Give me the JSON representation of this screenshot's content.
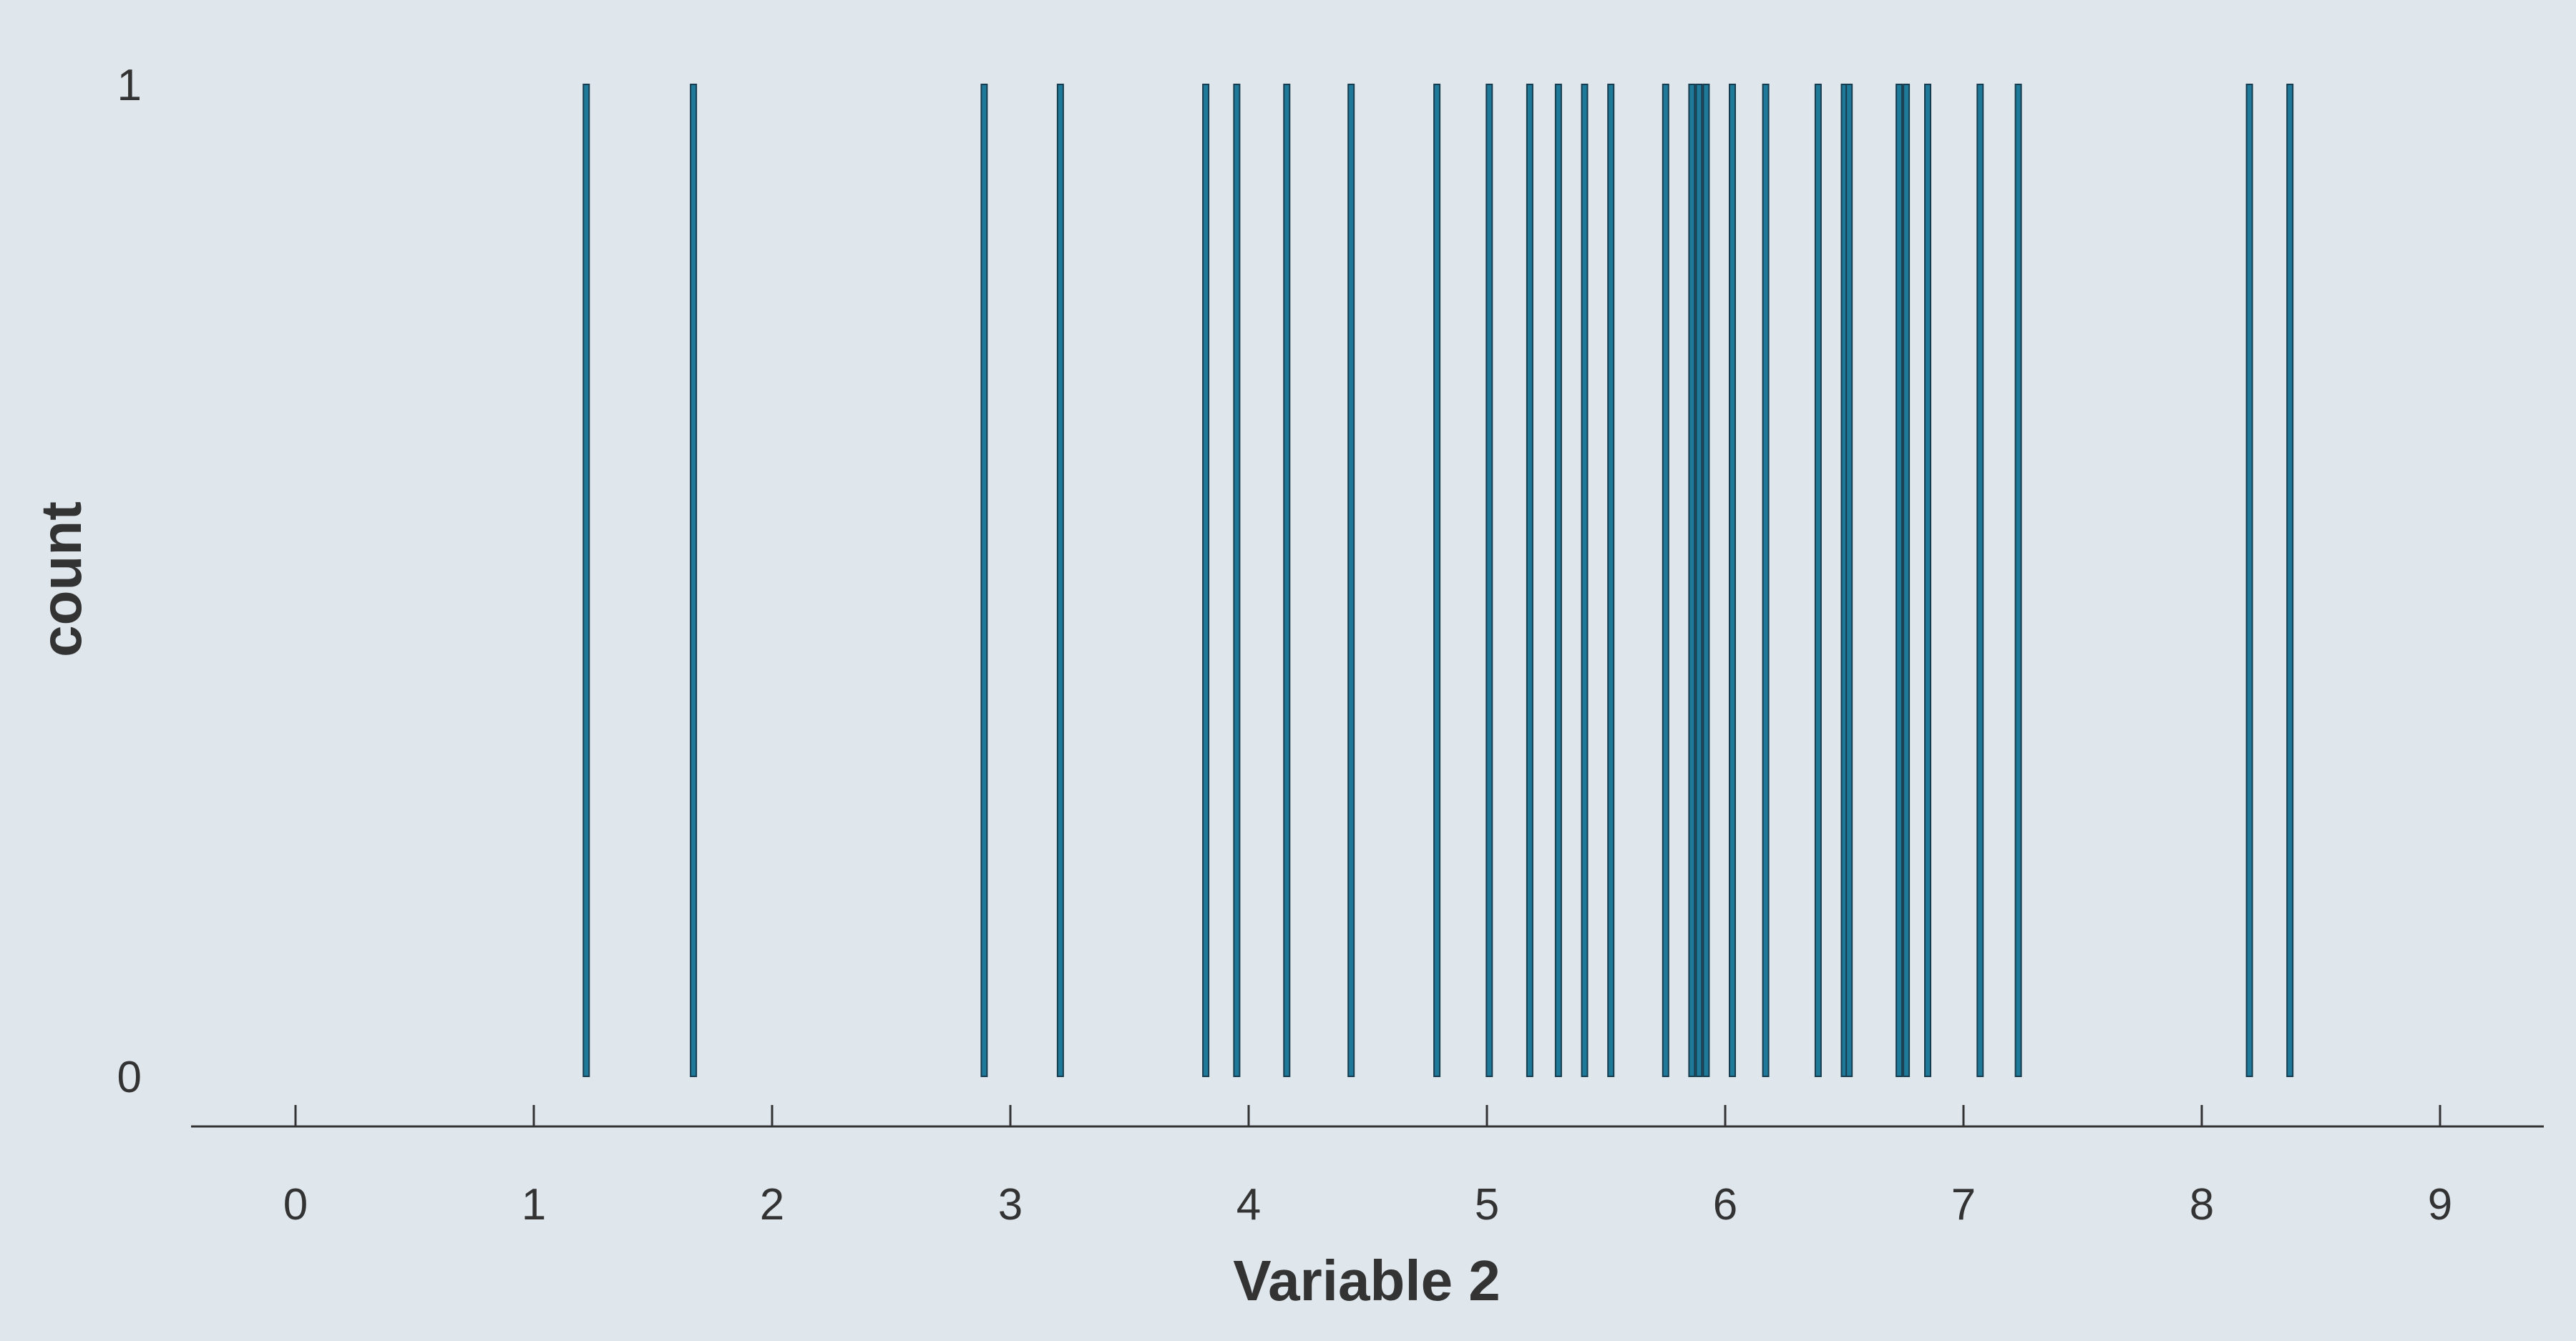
{
  "chart_data": {
    "type": "bar",
    "chart_kind": "histogram",
    "title": "",
    "xlabel": "Variable 2",
    "ylabel": "count",
    "xlim": [
      -0.45,
      9.45
    ],
    "ylim": [
      0,
      1
    ],
    "x_ticks": [
      "0",
      "1",
      "2",
      "3",
      "4",
      "5",
      "6",
      "7",
      "8",
      "9"
    ],
    "y_ticks": [
      "0",
      "1"
    ],
    "grid": false,
    "legend": "none",
    "bar_fill": "#1f7a99",
    "bar_edge": "#173c4f",
    "bars": [
      {
        "x": 1.22,
        "count": 1
      },
      {
        "x": 1.67,
        "count": 1
      },
      {
        "x": 2.89,
        "count": 1
      },
      {
        "x": 3.21,
        "count": 1
      },
      {
        "x": 3.82,
        "count": 1
      },
      {
        "x": 3.95,
        "count": 1
      },
      {
        "x": 4.16,
        "count": 1
      },
      {
        "x": 4.43,
        "count": 1
      },
      {
        "x": 4.79,
        "count": 1
      },
      {
        "x": 5.01,
        "count": 1
      },
      {
        "x": 5.18,
        "count": 1
      },
      {
        "x": 5.3,
        "count": 1
      },
      {
        "x": 5.41,
        "count": 1
      },
      {
        "x": 5.52,
        "count": 1
      },
      {
        "x": 5.75,
        "count": 1
      },
      {
        "x": 5.86,
        "count": 1
      },
      {
        "x": 5.89,
        "count": 1
      },
      {
        "x": 5.92,
        "count": 1
      },
      {
        "x": 6.03,
        "count": 1
      },
      {
        "x": 6.17,
        "count": 1
      },
      {
        "x": 6.39,
        "count": 1
      },
      {
        "x": 6.5,
        "count": 1
      },
      {
        "x": 6.52,
        "count": 1
      },
      {
        "x": 6.73,
        "count": 1
      },
      {
        "x": 6.76,
        "count": 1
      },
      {
        "x": 6.85,
        "count": 1
      },
      {
        "x": 7.07,
        "count": 1
      },
      {
        "x": 7.23,
        "count": 1
      },
      {
        "x": 8.2,
        "count": 1
      },
      {
        "x": 8.37,
        "count": 1
      }
    ]
  }
}
